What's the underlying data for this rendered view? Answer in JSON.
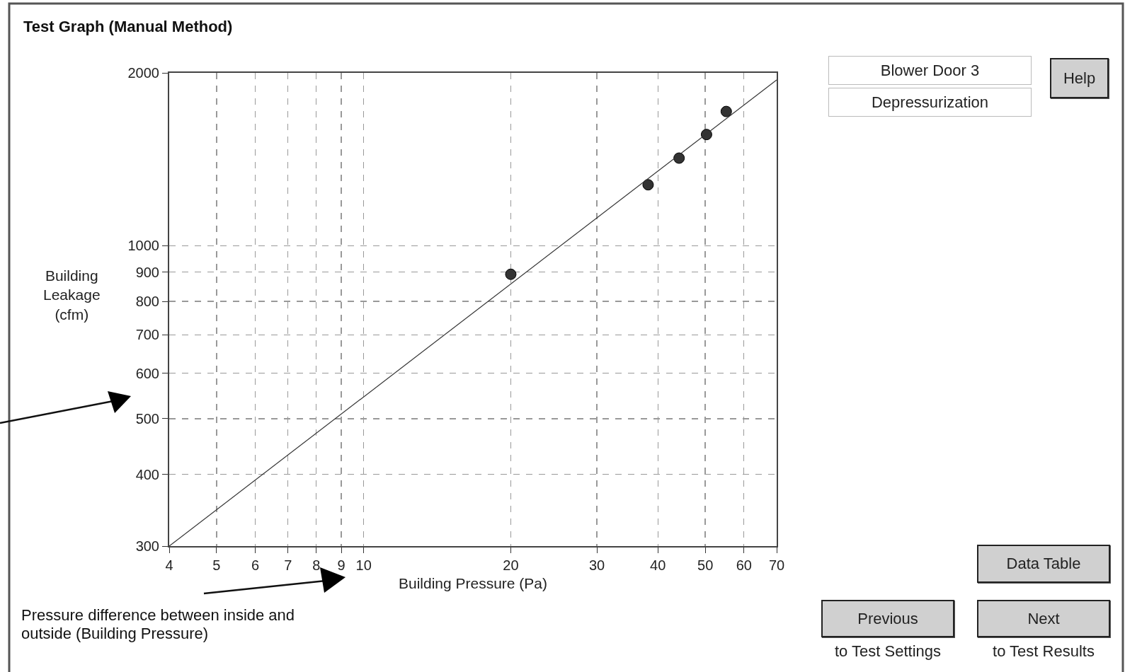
{
  "chart_data": {
    "type": "scatter",
    "title": "Test Graph (Manual Method)",
    "xlabel": "Building Pressure (Pa)",
    "ylabel": "Building Leakage (cfm)",
    "log": "xy",
    "grid": true,
    "legend": false,
    "marker": "circle",
    "xlim": [
      4,
      70
    ],
    "xticks": [
      4,
      5,
      6,
      7,
      8,
      9,
      10,
      20,
      30,
      40,
      50,
      60,
      70
    ],
    "ylim": [
      300,
      2000
    ],
    "yticks": [
      300,
      400,
      500,
      600,
      700,
      800,
      900,
      1000,
      2000
    ],
    "series": [
      {
        "color": "#333333",
        "x": [
          20,
          38.2,
          44.2,
          50.3,
          55.2
        ],
        "values": [
          892,
          1277,
          1421,
          1562,
          1713
        ]
      },
      {
        "type": "line",
        "color": "#333333",
        "line_style": "solid",
        "marker": "none",
        "x": [
          4,
          70
        ],
        "values": [
          300,
          1944
        ]
      }
    ],
    "annotations": [
      "Pressure difference between inside and outside (Building Pressure)",
      "Blower Door 3",
      "Depressurization",
      "Help",
      "Data Table",
      "Previous",
      "to Test Settings",
      "Next",
      "to Test Results"
    ]
  }
}
